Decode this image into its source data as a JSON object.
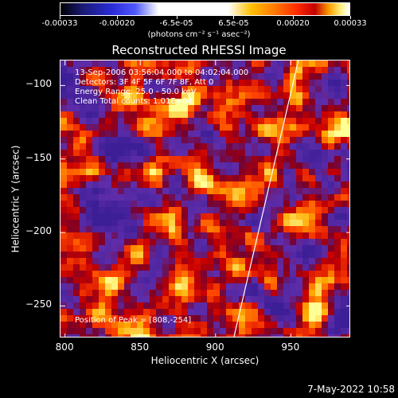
{
  "colorbar": {
    "ticks": [
      {
        "label": "-0.00033",
        "value": -0.00033
      },
      {
        "label": "-0.00020",
        "value": -0.0002
      },
      {
        "label": "-6.5e-05",
        "value": -6.5e-05
      },
      {
        "label": "6.5e-05",
        "value": 6.5e-05
      },
      {
        "label": "0.00020",
        "value": 0.0002
      },
      {
        "label": "0.00033",
        "value": 0.00033
      }
    ],
    "range": [
      -0.00033,
      0.00033
    ],
    "unit_label": "(photons cm⁻² s⁻¹ asec⁻²)"
  },
  "chart_data": {
    "type": "heatmap",
    "title": "Reconstructed RHESSI Image",
    "xlabel": "Heliocentric X (arcsec)",
    "ylabel": "Heliocentric Y (arcsec)",
    "xlim": [
      797,
      990
    ],
    "ylim": [
      -272,
      -83
    ],
    "xticks": [
      800,
      850,
      900,
      950
    ],
    "yticks": [
      -100,
      -150,
      -200,
      -250
    ],
    "annotations": [
      "13-Sep-2006 03:56:04.000 to 04:02:04.000",
      "Detectors: 3F 4F 5F 6F 7F 8F, Att 0",
      "Energy Range: 25.0 - 50.0 keV",
      "Clean    Total counts: 1.01E+04",
      "Position of Peak = [808,-254]"
    ],
    "peak": {
      "x": 808,
      "y": -254
    },
    "limb_line": [
      {
        "x": 912,
        "y": -272
      },
      {
        "x": 955,
        "y": -83
      }
    ],
    "colors": {
      "low": "#4a2aa0",
      "mid": "#c40000",
      "high": "#ffff90"
    }
  },
  "footer": {
    "timestamp": "7-May-2022 10:58"
  }
}
